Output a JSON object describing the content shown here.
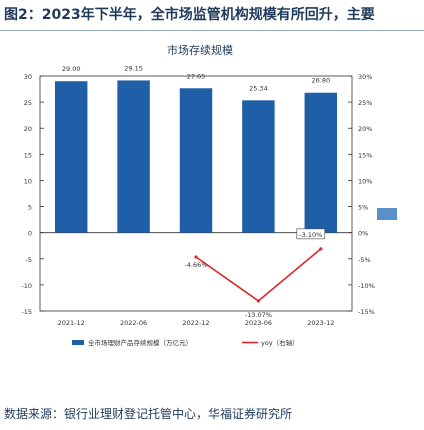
{
  "figure": {
    "caption": "图2：2023年下半年，全市场监管机构规模有所回升，主要",
    "source": "数据来源：银行业理财登记托管中心，华福证券研究所"
  },
  "chart_data": {
    "type": "bar",
    "title": "市场存续规模",
    "categories": [
      "2021-12",
      "2022-06",
      "2022-12",
      "2023-06",
      "2023-12"
    ],
    "category_tick_labels": [
      "2021-12",
      "2022-06",
      "2022-12",
      "2023-06",
      "2023-12"
    ],
    "series": [
      {
        "name": "全市场理财产品存续规模（万亿元）",
        "type": "bar",
        "axis": "left",
        "values": [
          29.0,
          29.15,
          27.65,
          25.34,
          26.8
        ],
        "data_labels": [
          "29.00",
          "29.15",
          "27.65",
          "25.34",
          "26.80"
        ],
        "color": "#1f5fa8"
      },
      {
        "name": "yoy（右轴）",
        "type": "line",
        "axis": "right",
        "values": [
          null,
          null,
          -4.66,
          -13.07,
          -3.1
        ],
        "data_labels": [
          "",
          "",
          "-4.66%",
          "-13.07%",
          "-3.10%"
        ],
        "color": "#e0262b"
      }
    ],
    "left_axis": {
      "min": -15,
      "max": 30,
      "ticks": [
        30,
        25,
        20,
        15,
        10,
        5,
        0,
        -5,
        -10,
        -15
      ]
    },
    "right_axis": {
      "min": -15,
      "max": 30,
      "ticks": [
        "30%",
        "25%",
        "20%",
        "15%",
        "10%",
        "5%",
        "0%",
        "-5%",
        "-10%",
        "-15%"
      ]
    },
    "grid": false,
    "legend_position": "bottom",
    "legend": [
      {
        "label": "全市场理财产品存续规模（万亿元）",
        "color": "#1f5fa8",
        "kind": "bar"
      },
      {
        "label": "yoy（右轴）",
        "color": "#e0262b",
        "kind": "line"
      }
    ]
  }
}
